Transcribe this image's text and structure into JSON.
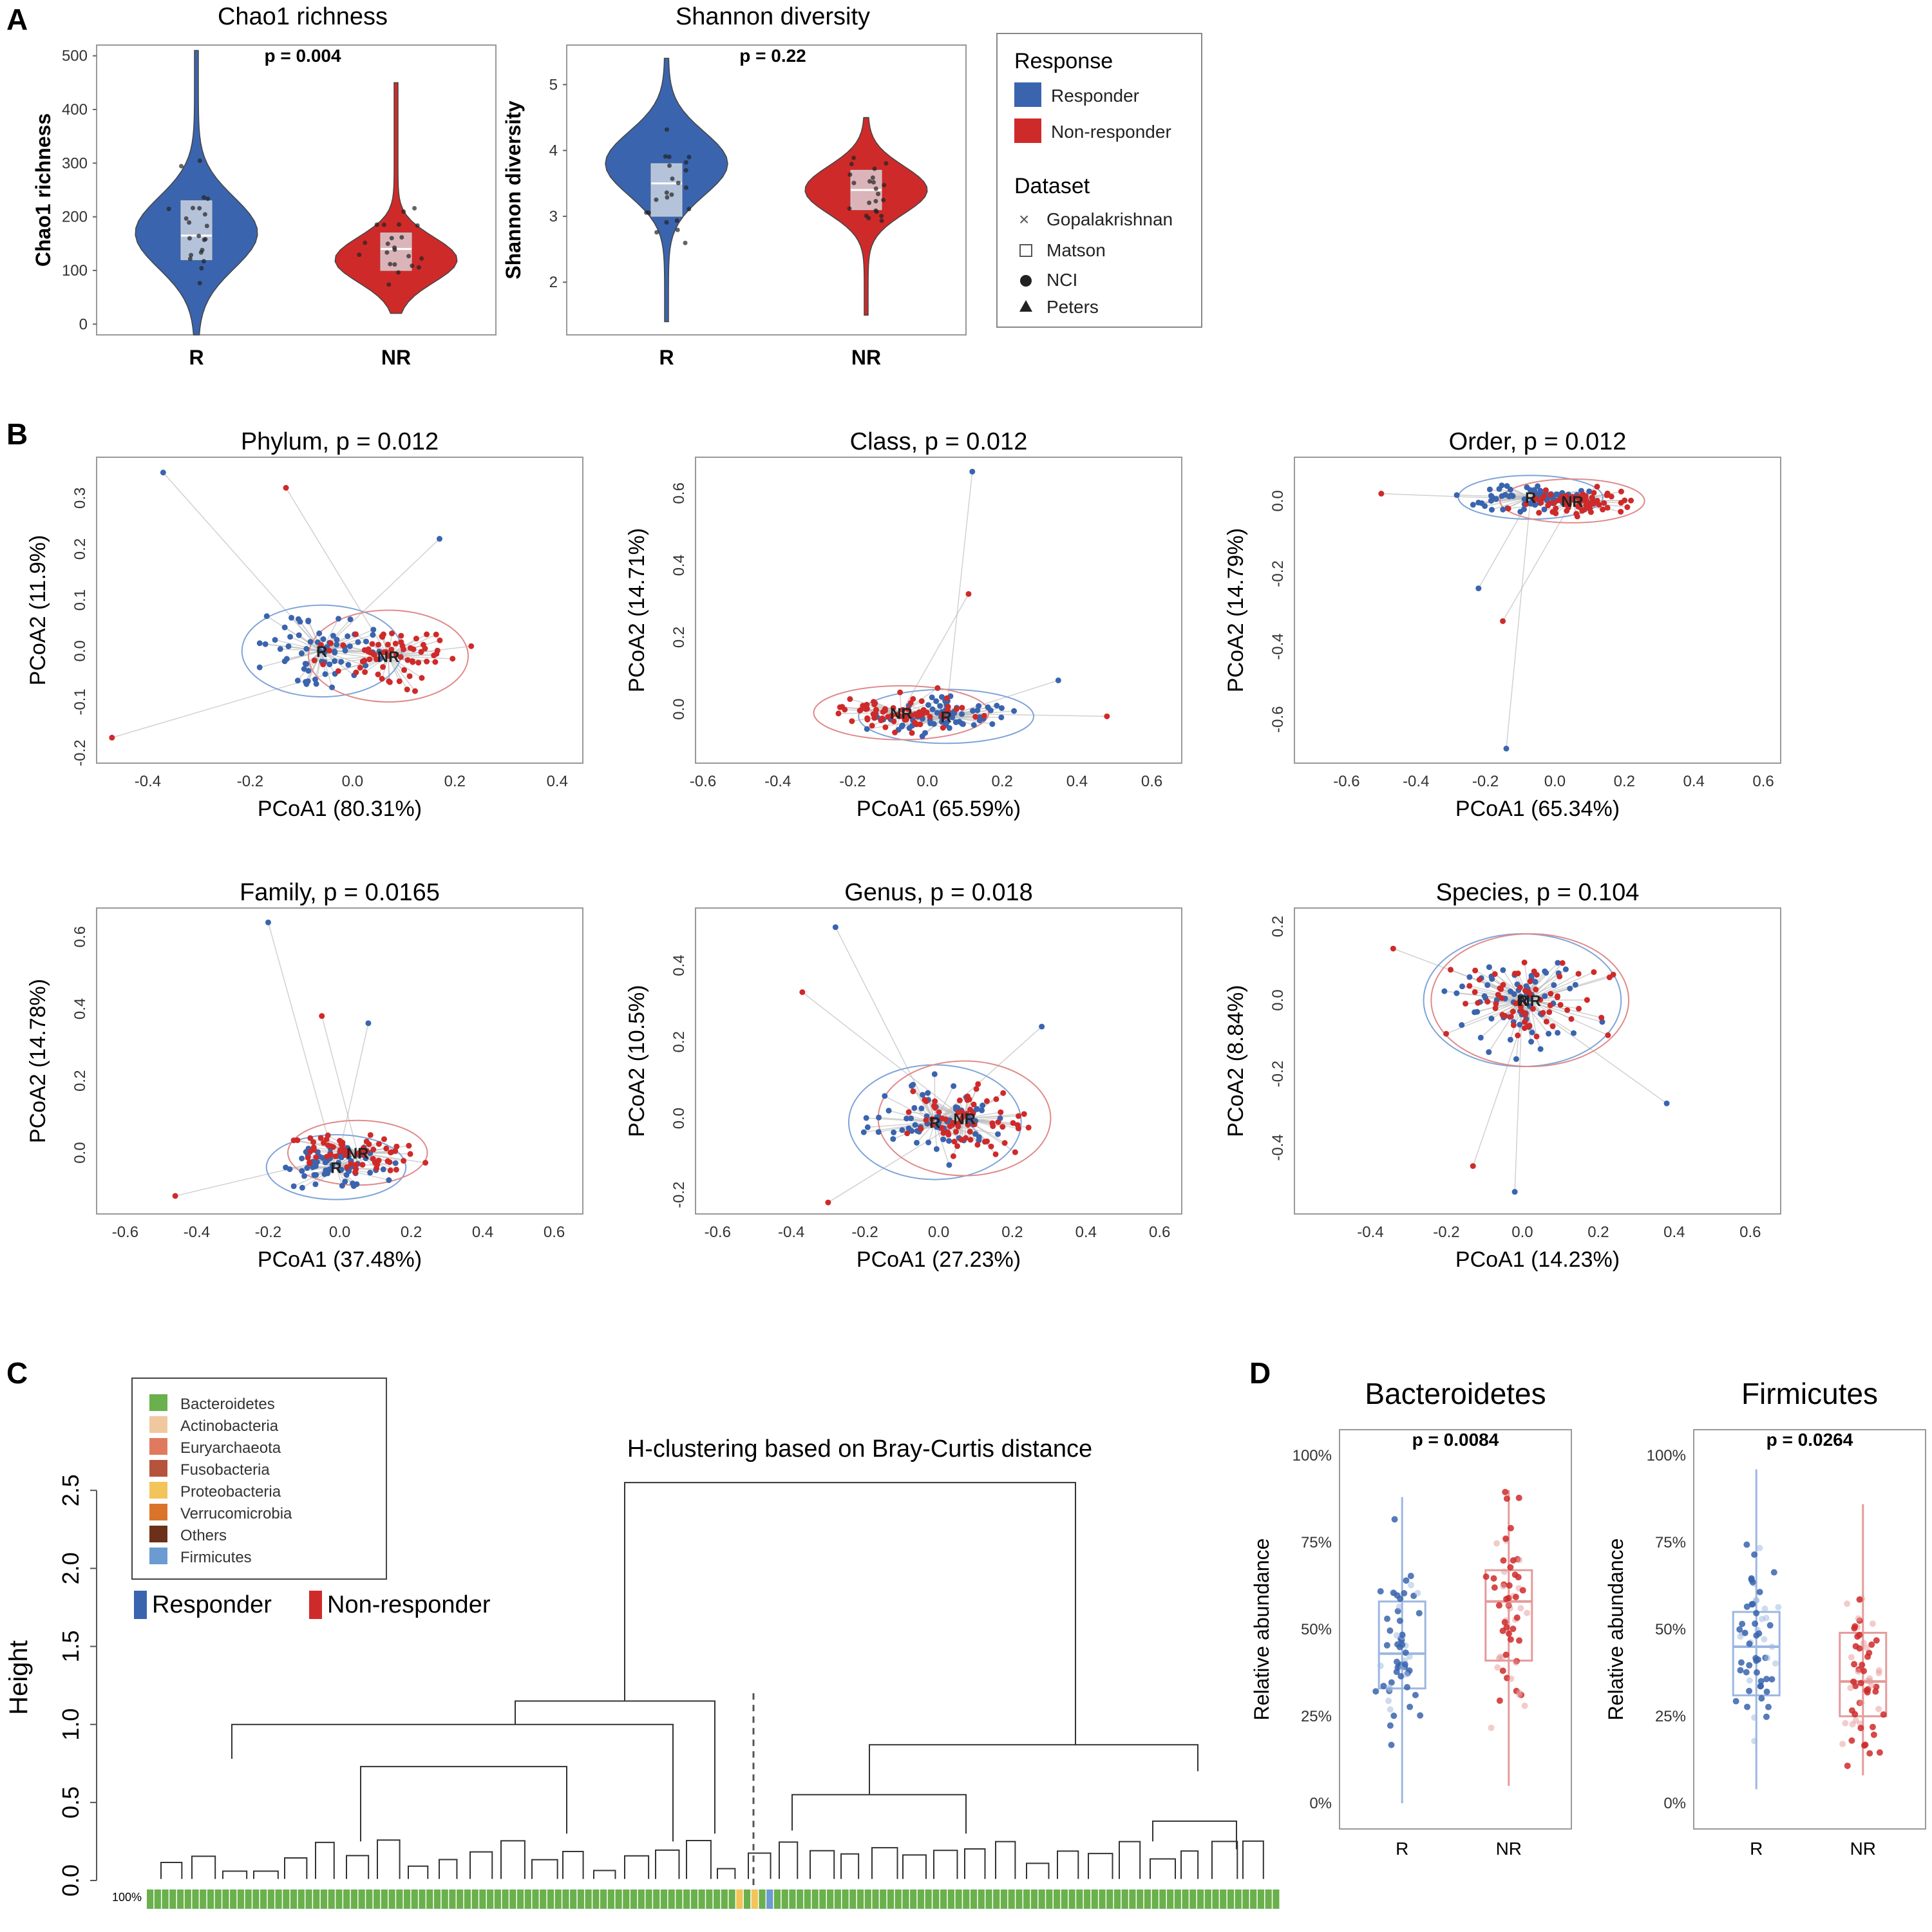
{
  "colors": {
    "responder": "#3a64ad",
    "non_responder": "#cf2a2a",
    "gray_line": "#bdbdbd",
    "bacteroidetes": "#6ab04c",
    "actinobacteria": "#f0c8a0",
    "euryarchaeota": "#e07a5f",
    "fusobacteria": "#b5533c",
    "proteobacteria": "#f2c45a",
    "verrucomicrobia": "#d9742a",
    "others": "#6b2f1a",
    "firmicutes": "#6b9bd1"
  },
  "panel_labels": {
    "a": "A",
    "b": "B",
    "c": "C",
    "d": "D"
  },
  "response_legend": {
    "title": "Response",
    "items": [
      "Responder",
      "Non-responder"
    ],
    "dataset_title": "Dataset",
    "datasets": [
      "Gopalakrishnan",
      "Matson",
      "NCI",
      "Peters"
    ]
  },
  "chart_data": [
    {
      "id": "chao1",
      "type": "violin",
      "title": "Chao1 richness",
      "p_label": "p = 0.004",
      "ylabel": "Chao1 richness",
      "categories": [
        "R",
        "NR"
      ],
      "ylim": [
        -20,
        520
      ],
      "yticks": [
        "0",
        "100",
        "200",
        "300",
        "400",
        "500"
      ],
      "ytick_values": [
        0,
        100,
        200,
        300,
        400,
        500
      ],
      "series": [
        {
          "name": "R",
          "median": 165,
          "q1": 120,
          "q3": 230,
          "min": -20,
          "max": 510,
          "shape_mode": 170
        },
        {
          "name": "NR",
          "median": 140,
          "q1": 100,
          "q3": 170,
          "min": 20,
          "max": 450,
          "shape_mode": 120
        }
      ]
    },
    {
      "id": "shannon",
      "type": "violin",
      "title": "Shannon diversity",
      "p_label": "p = 0.22",
      "ylabel": "Shannon diversity",
      "categories": [
        "R",
        "NR"
      ],
      "ylim": [
        1.2,
        5.6
      ],
      "yticks": [
        "2",
        "3",
        "4",
        "5"
      ],
      "ytick_values": [
        2,
        3,
        4,
        5
      ],
      "series": [
        {
          "name": "R",
          "median": 3.5,
          "q1": 3.0,
          "q3": 3.8,
          "min": 1.4,
          "max": 5.4,
          "shape_mode": 3.8
        },
        {
          "name": "NR",
          "median": 3.4,
          "q1": 3.1,
          "q3": 3.7,
          "min": 1.5,
          "max": 4.5,
          "shape_mode": 3.4
        }
      ]
    },
    {
      "id": "pcoa-phylum",
      "type": "scatter",
      "title": "Phylum, p = 0.012",
      "xlabel": "PCoA1 (80.31%)",
      "ylabel": "PCoA2 (11.9%)",
      "xlim": [
        -0.5,
        0.45
      ],
      "ylim": [
        -0.22,
        0.38
      ],
      "xticks": [
        "-0.4",
        "-0.2",
        "0.0",
        "0.2",
        "0.4"
      ],
      "xtick_values": [
        -0.4,
        -0.2,
        0.0,
        0.2,
        0.4
      ],
      "yticks": [
        "-0.2",
        "-0.1",
        "0.0",
        "0.1",
        "0.2",
        "0.3"
      ],
      "ytick_values": [
        -0.2,
        -0.1,
        0.0,
        0.1,
        0.2,
        0.3
      ],
      "centroids": {
        "R": [
          -0.06,
          0.0
        ],
        "NR": [
          0.07,
          -0.01
        ]
      },
      "spread": [
        0.12,
        0.06
      ],
      "outliers": [
        [
          -0.37,
          0.35
        ],
        [
          -0.13,
          0.32
        ],
        [
          0.17,
          0.22
        ],
        [
          -0.47,
          -0.17
        ]
      ],
      "group_labels": [
        "R",
        "NR"
      ]
    },
    {
      "id": "pcoa-class",
      "type": "scatter",
      "title": "Class, p = 0.012",
      "xlabel": "PCoA1 (65.59%)",
      "ylabel": "PCoA2 (14.71%)",
      "xlim": [
        -0.62,
        0.68
      ],
      "ylim": [
        -0.15,
        0.7
      ],
      "xticks": [
        "-0.6",
        "-0.4",
        "-0.2",
        "0.0",
        "0.2",
        "0.4",
        "0.6"
      ],
      "xtick_values": [
        -0.6,
        -0.4,
        -0.2,
        0.0,
        0.2,
        0.4,
        0.6
      ],
      "yticks": [
        "0.0",
        "0.2",
        "0.4",
        "0.6"
      ],
      "ytick_values": [
        0.0,
        0.2,
        0.4,
        0.6
      ],
      "centroids": {
        "R": [
          0.05,
          -0.02
        ],
        "NR": [
          -0.07,
          -0.01
        ]
      },
      "spread": [
        0.18,
        0.05
      ],
      "outliers": [
        [
          0.12,
          0.66
        ],
        [
          0.11,
          0.32
        ],
        [
          0.35,
          0.08
        ],
        [
          0.48,
          -0.02
        ]
      ],
      "group_labels": [
        "R",
        "NR"
      ]
    },
    {
      "id": "pcoa-order",
      "type": "scatter",
      "title": "Order, p = 0.012",
      "xlabel": "PCoA1 (65.34%)",
      "ylabel": "PCoA2 (14.79%)",
      "xlim": [
        -0.75,
        0.65
      ],
      "ylim": [
        -0.72,
        0.12
      ],
      "xticks": [
        "-0.6",
        "-0.4",
        "-0.2",
        "0.0",
        "0.2",
        "0.4",
        "0.6"
      ],
      "xtick_values": [
        -0.6,
        -0.4,
        -0.2,
        0.0,
        0.2,
        0.4,
        0.6
      ],
      "yticks": [
        "-0.6",
        "-0.4",
        "-0.2",
        "0.0"
      ],
      "ytick_values": [
        -0.6,
        -0.4,
        -0.2,
        0.0
      ],
      "centroids": {
        "R": [
          -0.07,
          0.01
        ],
        "NR": [
          0.05,
          0.0
        ]
      },
      "spread": [
        0.16,
        0.04
      ],
      "outliers": [
        [
          -0.14,
          -0.68
        ],
        [
          -0.15,
          -0.33
        ],
        [
          -0.22,
          -0.24
        ],
        [
          -0.5,
          0.02
        ]
      ],
      "group_labels": [
        "R",
        "NR"
      ]
    },
    {
      "id": "pcoa-family",
      "type": "scatter",
      "title": "Family, p = 0.0165",
      "xlabel": "PCoA1 (37.48%)",
      "ylabel": "PCoA2 (14.78%)",
      "xlim": [
        -0.68,
        0.68
      ],
      "ylim": [
        -0.17,
        0.68
      ],
      "xticks": [
        "-0.6",
        "-0.4",
        "-0.2",
        "0.0",
        "0.2",
        "0.4",
        "0.6"
      ],
      "xtick_values": [
        -0.6,
        -0.4,
        -0.2,
        0.0,
        0.2,
        0.4,
        0.6
      ],
      "yticks": [
        "0.0",
        "0.2",
        "0.4",
        "0.6"
      ],
      "ytick_values": [
        0.0,
        0.2,
        0.4,
        0.6
      ],
      "centroids": {
        "R": [
          -0.01,
          -0.04
        ],
        "NR": [
          0.05,
          0.0
        ]
      },
      "spread": [
        0.15,
        0.06
      ],
      "outliers": [
        [
          -0.2,
          0.64
        ],
        [
          -0.05,
          0.38
        ],
        [
          0.08,
          0.36
        ],
        [
          -0.46,
          -0.12
        ]
      ],
      "group_labels": [
        "R",
        "NR"
      ]
    },
    {
      "id": "pcoa-genus",
      "type": "scatter",
      "title": "Genus, p = 0.018",
      "xlabel": "PCoA1 (27.23%)",
      "ylabel": "PCoA2 (10.5%)",
      "xlim": [
        -0.66,
        0.66
      ],
      "ylim": [
        -0.25,
        0.55
      ],
      "xticks": [
        "-0.6",
        "-0.4",
        "-0.2",
        "0.0",
        "0.2",
        "0.4",
        "0.6"
      ],
      "xtick_values": [
        -0.6,
        -0.4,
        -0.2,
        0.0,
        0.2,
        0.4,
        0.6
      ],
      "yticks": [
        "-0.2",
        "0.0",
        "0.2",
        "0.4"
      ],
      "ytick_values": [
        -0.2,
        0.0,
        0.2,
        0.4
      ],
      "centroids": {
        "R": [
          -0.01,
          -0.01
        ],
        "NR": [
          0.07,
          0.0
        ]
      },
      "spread": [
        0.18,
        0.1
      ],
      "outliers": [
        [
          -0.28,
          0.5
        ],
        [
          -0.37,
          0.33
        ],
        [
          0.28,
          0.24
        ],
        [
          -0.3,
          -0.22
        ]
      ],
      "group_labels": [
        "R",
        "NR"
      ]
    },
    {
      "id": "pcoa-species",
      "type": "scatter",
      "title": "Species, p = 0.104",
      "xlabel": "PCoA1 (14.23%)",
      "ylabel": "PCoA2 (8.84%)",
      "xlim": [
        -0.6,
        0.68
      ],
      "ylim": [
        -0.58,
        0.25
      ],
      "xticks": [
        "-0.4",
        "-0.2",
        "0.0",
        "0.2",
        "0.4",
        "0.6"
      ],
      "xtick_values": [
        -0.4,
        -0.2,
        0.0,
        0.2,
        0.4,
        0.6
      ],
      "yticks": [
        "-0.4",
        "-0.2",
        "0.0",
        "0.2"
      ],
      "ytick_values": [
        -0.4,
        -0.2,
        0.0,
        0.2
      ],
      "centroids": {
        "R": [
          0.0,
          0.0
        ],
        "NR": [
          0.02,
          0.0
        ]
      },
      "spread": [
        0.2,
        0.12
      ],
      "outliers": [
        [
          -0.02,
          -0.52
        ],
        [
          -0.13,
          -0.45
        ],
        [
          0.38,
          -0.28
        ],
        [
          -0.34,
          0.14
        ]
      ],
      "group_labels": [
        "R",
        "NR"
      ]
    },
    {
      "id": "dendrogram",
      "type": "dendrogram",
      "title": "H-clustering based on Bray-Curtis distance",
      "ylabel": "Height",
      "ylim": [
        0,
        2.6
      ],
      "yticks": [
        "0.0",
        "0.5",
        "1.0",
        "1.5",
        "2.0",
        "2.5"
      ],
      "ytick_values": [
        0.0,
        0.5,
        1.0,
        1.5,
        2.0,
        2.5
      ],
      "cut_height": 1.2,
      "root_height": 2.55,
      "merge_heights": [
        1.15,
        1.0,
        0.78,
        0.72,
        0.6,
        0.55,
        0.38,
        0.3
      ],
      "bar_label": "100%",
      "phylum_legend": [
        "Bacteroidetes",
        "Actinobacteria",
        "Euryarchaeota",
        "Fusobacteria",
        "Proteobacteria",
        "Verrucomicrobia",
        "Others",
        "Firmicutes"
      ],
      "response_legend": [
        "Responder",
        "Non-responder"
      ]
    },
    {
      "id": "bacteroidetes",
      "type": "box",
      "title": "Bacteroidetes",
      "p_label": "p = 0.0084",
      "ylabel": "Relative abundance",
      "categories": [
        "R",
        "NR"
      ],
      "ylim": [
        0,
        1.0
      ],
      "yticks": [
        "0%",
        "25%",
        "50%",
        "75%",
        "100%"
      ],
      "ytick_values": [
        0,
        0.25,
        0.5,
        0.75,
        1.0
      ],
      "series": [
        {
          "name": "R",
          "median": 0.43,
          "q1": 0.33,
          "q3": 0.58,
          "min": 0.0,
          "max": 0.88
        },
        {
          "name": "NR",
          "median": 0.58,
          "q1": 0.41,
          "q3": 0.67,
          "min": 0.05,
          "max": 0.9
        }
      ]
    },
    {
      "id": "firmicutes",
      "type": "box",
      "title": "Firmicutes",
      "p_label": "p = 0.0264",
      "ylabel": "Relative abundance",
      "categories": [
        "R",
        "NR"
      ],
      "ylim": [
        0,
        1.0
      ],
      "yticks": [
        "0%",
        "25%",
        "50%",
        "75%",
        "100%"
      ],
      "ytick_values": [
        0,
        0.25,
        0.5,
        0.75,
        1.0
      ],
      "series": [
        {
          "name": "R",
          "median": 0.45,
          "q1": 0.31,
          "q3": 0.55,
          "min": 0.04,
          "max": 0.96
        },
        {
          "name": "NR",
          "median": 0.35,
          "q1": 0.25,
          "q3": 0.49,
          "min": 0.08,
          "max": 0.86
        }
      ]
    }
  ]
}
